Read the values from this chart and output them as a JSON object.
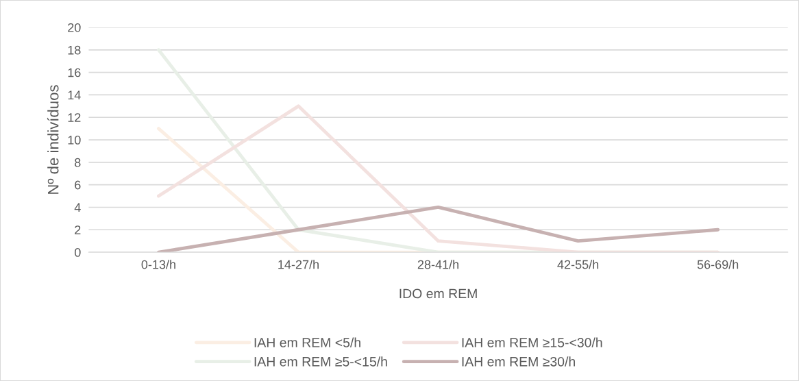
{
  "chart_data": {
    "type": "line",
    "xlabel": "IDO em REM",
    "ylabel": "Nº de indivíduos",
    "categories": [
      "0-13/h",
      "14-27/h",
      "28-41/h",
      "42-55/h",
      "56-69/h"
    ],
    "series": [
      {
        "name": "IAH em REM <5/h",
        "color": "#fbeee3",
        "values": [
          11,
          0,
          0,
          0,
          0
        ]
      },
      {
        "name": "IAH em REM ≥5-<15/h",
        "color": "#e8efe7",
        "values": [
          18,
          2,
          0,
          0,
          0
        ]
      },
      {
        "name": "IAH em REM ≥15-<30/h",
        "color": "#f3e1df",
        "values": [
          5,
          13,
          1,
          0,
          0
        ]
      },
      {
        "name": "IAH em REM ≥30/h",
        "color": "#c7b1b1",
        "values": [
          0,
          2,
          4,
          1,
          2
        ]
      }
    ],
    "ylim": [
      0,
      20
    ],
    "yticks": [
      0,
      2,
      4,
      6,
      8,
      10,
      12,
      14,
      16,
      18,
      20
    ],
    "grid": "y",
    "legend": "bottom",
    "marker": "none",
    "line_style": "solid"
  }
}
